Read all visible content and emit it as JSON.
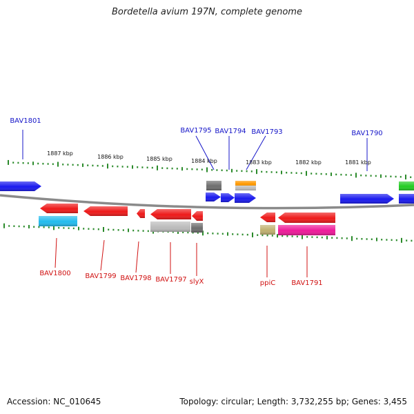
{
  "title": "Bordetella avium 197N, complete genome",
  "accession_text": "Accession: NC_010645",
  "summary_text": "Topology: circular; Length: 3,732,255 bp; Genes: 3,455",
  "colors": {
    "forward_label": "#1414c8",
    "reverse_label": "#d01010",
    "ruler_tick": "#2a8a2a",
    "backbone": "#808080"
  },
  "ruler_labels": [
    "1887 kbp",
    "1886 kbp",
    "1885 kbp",
    "1884 kbp",
    "1883 kbp",
    "1882 kbp",
    "1881 kbp"
  ],
  "forward_genes": [
    "BAV1801",
    "BAV1795",
    "BAV1794",
    "BAV1793",
    "BAV1790"
  ],
  "reverse_genes": [
    "BAV1800",
    "BAV1799",
    "BAV1798",
    "BAV1797",
    "slyX",
    "ppiC",
    "BAV1791"
  ],
  "feature_colors": {
    "blue": "#1a1aee",
    "red": "#ee1a1a",
    "cyan": "#22bbee",
    "gray": "#bcbcbc",
    "dark_gray": "#6e6e6e",
    "orange": "#ff9900",
    "green": "#22cc22",
    "olive": "#c0b070",
    "magenta": "#ee1a99"
  }
}
